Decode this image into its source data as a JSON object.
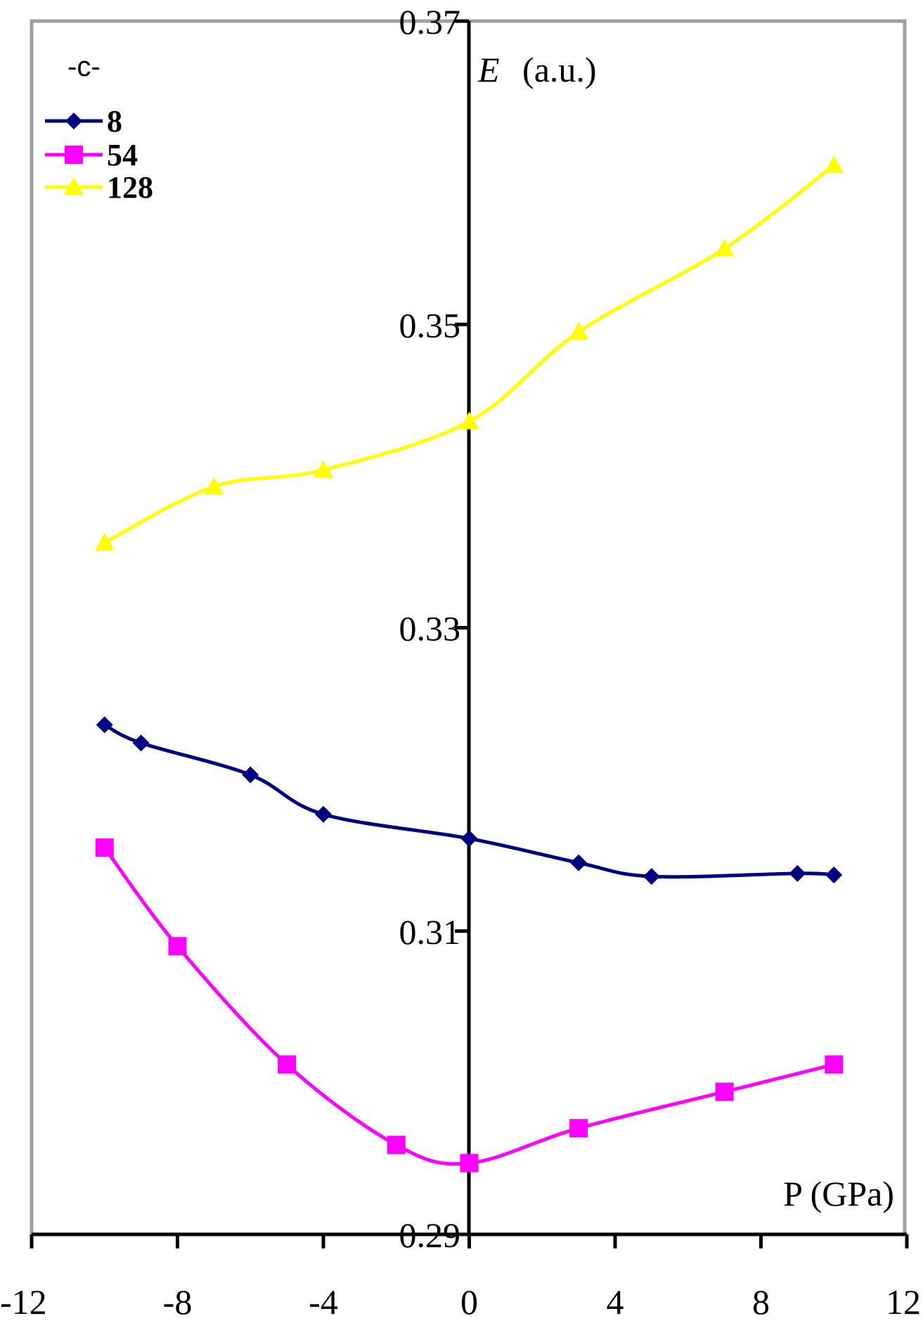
{
  "chart_data": {
    "type": "line",
    "panel_label": "-c-",
    "xlabel": "P (GPa)",
    "ylabel_italic": "E",
    "ylabel_unit": "(a.u.)",
    "xlim": [
      -12,
      12
    ],
    "ylim": [
      0.29,
      0.37
    ],
    "x_ticks": [
      "-12",
      "-8",
      "-4",
      "0",
      "4",
      "8",
      "12"
    ],
    "y_ticks": [
      "0.29",
      "0.31",
      "0.33",
      "0.35",
      "0.37"
    ],
    "legend_position": "top-left",
    "grid": false,
    "series": [
      {
        "name": "8",
        "color": "#000080",
        "marker": "diamond",
        "x": [
          -10,
          -9,
          -6,
          -4,
          0,
          3,
          5,
          9,
          10
        ],
        "y": [
          0.3236,
          0.3224,
          0.3203,
          0.3177,
          0.3161,
          0.3145,
          0.3136,
          0.3138,
          0.3137
        ]
      },
      {
        "name": "54",
        "color": "#ff00ff",
        "marker": "square",
        "x": [
          -10,
          -8,
          -5,
          -2,
          0,
          3,
          7,
          10
        ],
        "y": [
          0.3155,
          0.309,
          0.3012,
          0.2959,
          0.2947,
          0.297,
          0.2994,
          0.3012
        ]
      },
      {
        "name": "128",
        "color": "#ffff00",
        "marker": "triangle",
        "x": [
          -10,
          -7,
          -4,
          0,
          3,
          7,
          10
        ],
        "y": [
          0.3356,
          0.3393,
          0.3404,
          0.3436,
          0.3495,
          0.355,
          0.3605
        ]
      }
    ]
  }
}
